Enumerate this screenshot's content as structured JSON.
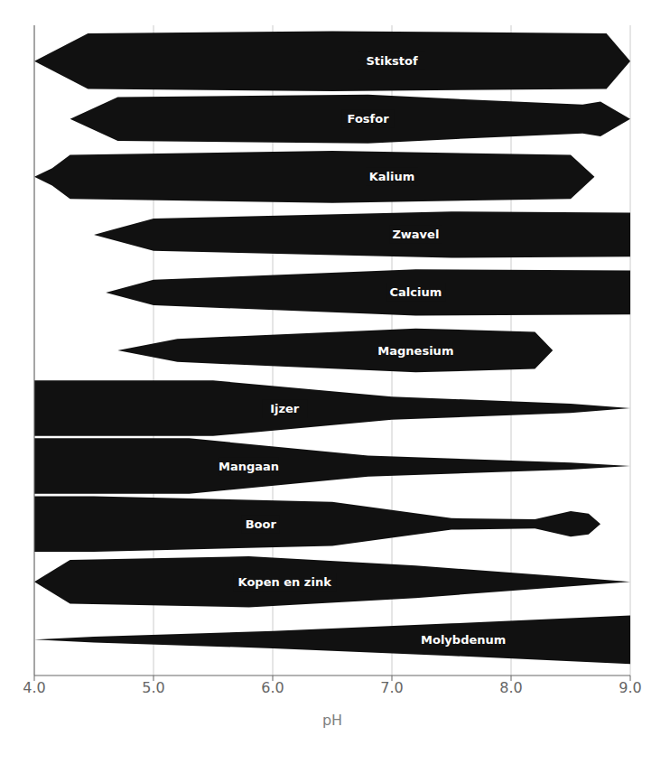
{
  "chart_data": {
    "type": "area",
    "xlabel": "pH",
    "xlim": [
      4.0,
      9.0
    ],
    "xticks": [
      {
        "value": 4.0,
        "label": "4.0"
      },
      {
        "value": 5.0,
        "label": "5.0"
      },
      {
        "value": 6.0,
        "label": "6.0"
      },
      {
        "value": 7.0,
        "label": "7.0"
      },
      {
        "value": 8.0,
        "label": "8.0"
      },
      {
        "value": 9.0,
        "label": "9.0"
      }
    ],
    "ylim": [
      -0.62,
      10.62
    ],
    "tick_labels": "x",
    "grid": true,
    "color": "#111111",
    "series": [
      {
        "name": "Stikstof",
        "row": 10,
        "x": [
          4.0,
          4.45,
          6.5,
          8.8,
          9.0
        ],
        "half_widths": [
          0.0,
          0.48,
          0.52,
          0.48,
          0.0
        ]
      },
      {
        "name": "Fosfor",
        "row": 9,
        "x": [
          4.0,
          4.3,
          4.7,
          6.8,
          7.5,
          8.6,
          8.75,
          8.85,
          9.0
        ],
        "half_widths": [
          0.0,
          0.0,
          0.38,
          0.42,
          0.35,
          0.25,
          0.3,
          0.18,
          0.0
        ]
      },
      {
        "name": "Kalium",
        "row": 8,
        "x": [
          4.0,
          4.15,
          4.3,
          6.5,
          8.5,
          8.7
        ],
        "half_widths": [
          0.0,
          0.15,
          0.38,
          0.45,
          0.38,
          0.0
        ]
      },
      {
        "name": "Zwavel",
        "row": 7,
        "x": [
          4.0,
          4.5,
          5.0,
          7.5,
          9.0
        ],
        "half_widths": [
          0.0,
          0.0,
          0.28,
          0.4,
          0.38
        ]
      },
      {
        "name": "Calcium",
        "row": 6,
        "x": [
          4.0,
          4.6,
          5.0,
          7.2,
          9.0
        ],
        "half_widths": [
          0.0,
          0.0,
          0.22,
          0.4,
          0.38
        ]
      },
      {
        "name": "Magnesium",
        "row": 5,
        "x": [
          4.0,
          4.7,
          5.2,
          7.2,
          8.2,
          8.35
        ],
        "half_widths": [
          0.0,
          0.0,
          0.2,
          0.38,
          0.32,
          0.0
        ]
      },
      {
        "name": "Ijzer",
        "row": 4,
        "x": [
          4.0,
          5.5,
          7.0,
          8.5,
          9.0
        ],
        "half_widths": [
          0.48,
          0.48,
          0.2,
          0.08,
          0.0
        ]
      },
      {
        "name": "Mangaan",
        "row": 3,
        "x": [
          4.0,
          5.3,
          6.8,
          8.5,
          9.0
        ],
        "half_widths": [
          0.48,
          0.48,
          0.18,
          0.06,
          0.0
        ]
      },
      {
        "name": "Boor",
        "row": 2,
        "x": [
          4.0,
          4.5,
          6.5,
          7.5,
          8.2,
          8.5,
          8.65,
          8.75
        ],
        "half_widths": [
          0.48,
          0.48,
          0.38,
          0.1,
          0.08,
          0.22,
          0.18,
          0.0
        ]
      },
      {
        "name": "Kopen en zink",
        "row": 1,
        "x": [
          4.0,
          4.3,
          5.8,
          7.2,
          8.5,
          9.0
        ],
        "half_widths": [
          0.0,
          0.38,
          0.44,
          0.28,
          0.08,
          0.0
        ]
      },
      {
        "name": "Molybdenum",
        "row": 0,
        "x": [
          4.0,
          4.5,
          6.0,
          7.5,
          9.0
        ],
        "half_widths": [
          0.0,
          0.05,
          0.15,
          0.28,
          0.42
        ]
      }
    ],
    "annotations": [
      {
        "text": "Stikstof",
        "x": 7.0,
        "y": 10
      },
      {
        "text": "Fosfor",
        "x": 6.8,
        "y": 9
      },
      {
        "text": "Kalium",
        "x": 7.0,
        "y": 8
      },
      {
        "text": "Zwavel",
        "x": 7.2,
        "y": 7
      },
      {
        "text": "Calcium",
        "x": 7.2,
        "y": 6
      },
      {
        "text": "Magnesium",
        "x": 7.2,
        "y": 5
      },
      {
        "text": "Ijzer",
        "x": 6.1,
        "y": 4
      },
      {
        "text": "Mangaan",
        "x": 5.8,
        "y": 3
      },
      {
        "text": "Boor",
        "x": 5.9,
        "y": 2
      },
      {
        "text": "Kopen en zink",
        "x": 6.1,
        "y": 1
      },
      {
        "text": "Molybdenum",
        "x": 7.6,
        "y": 0
      }
    ]
  }
}
